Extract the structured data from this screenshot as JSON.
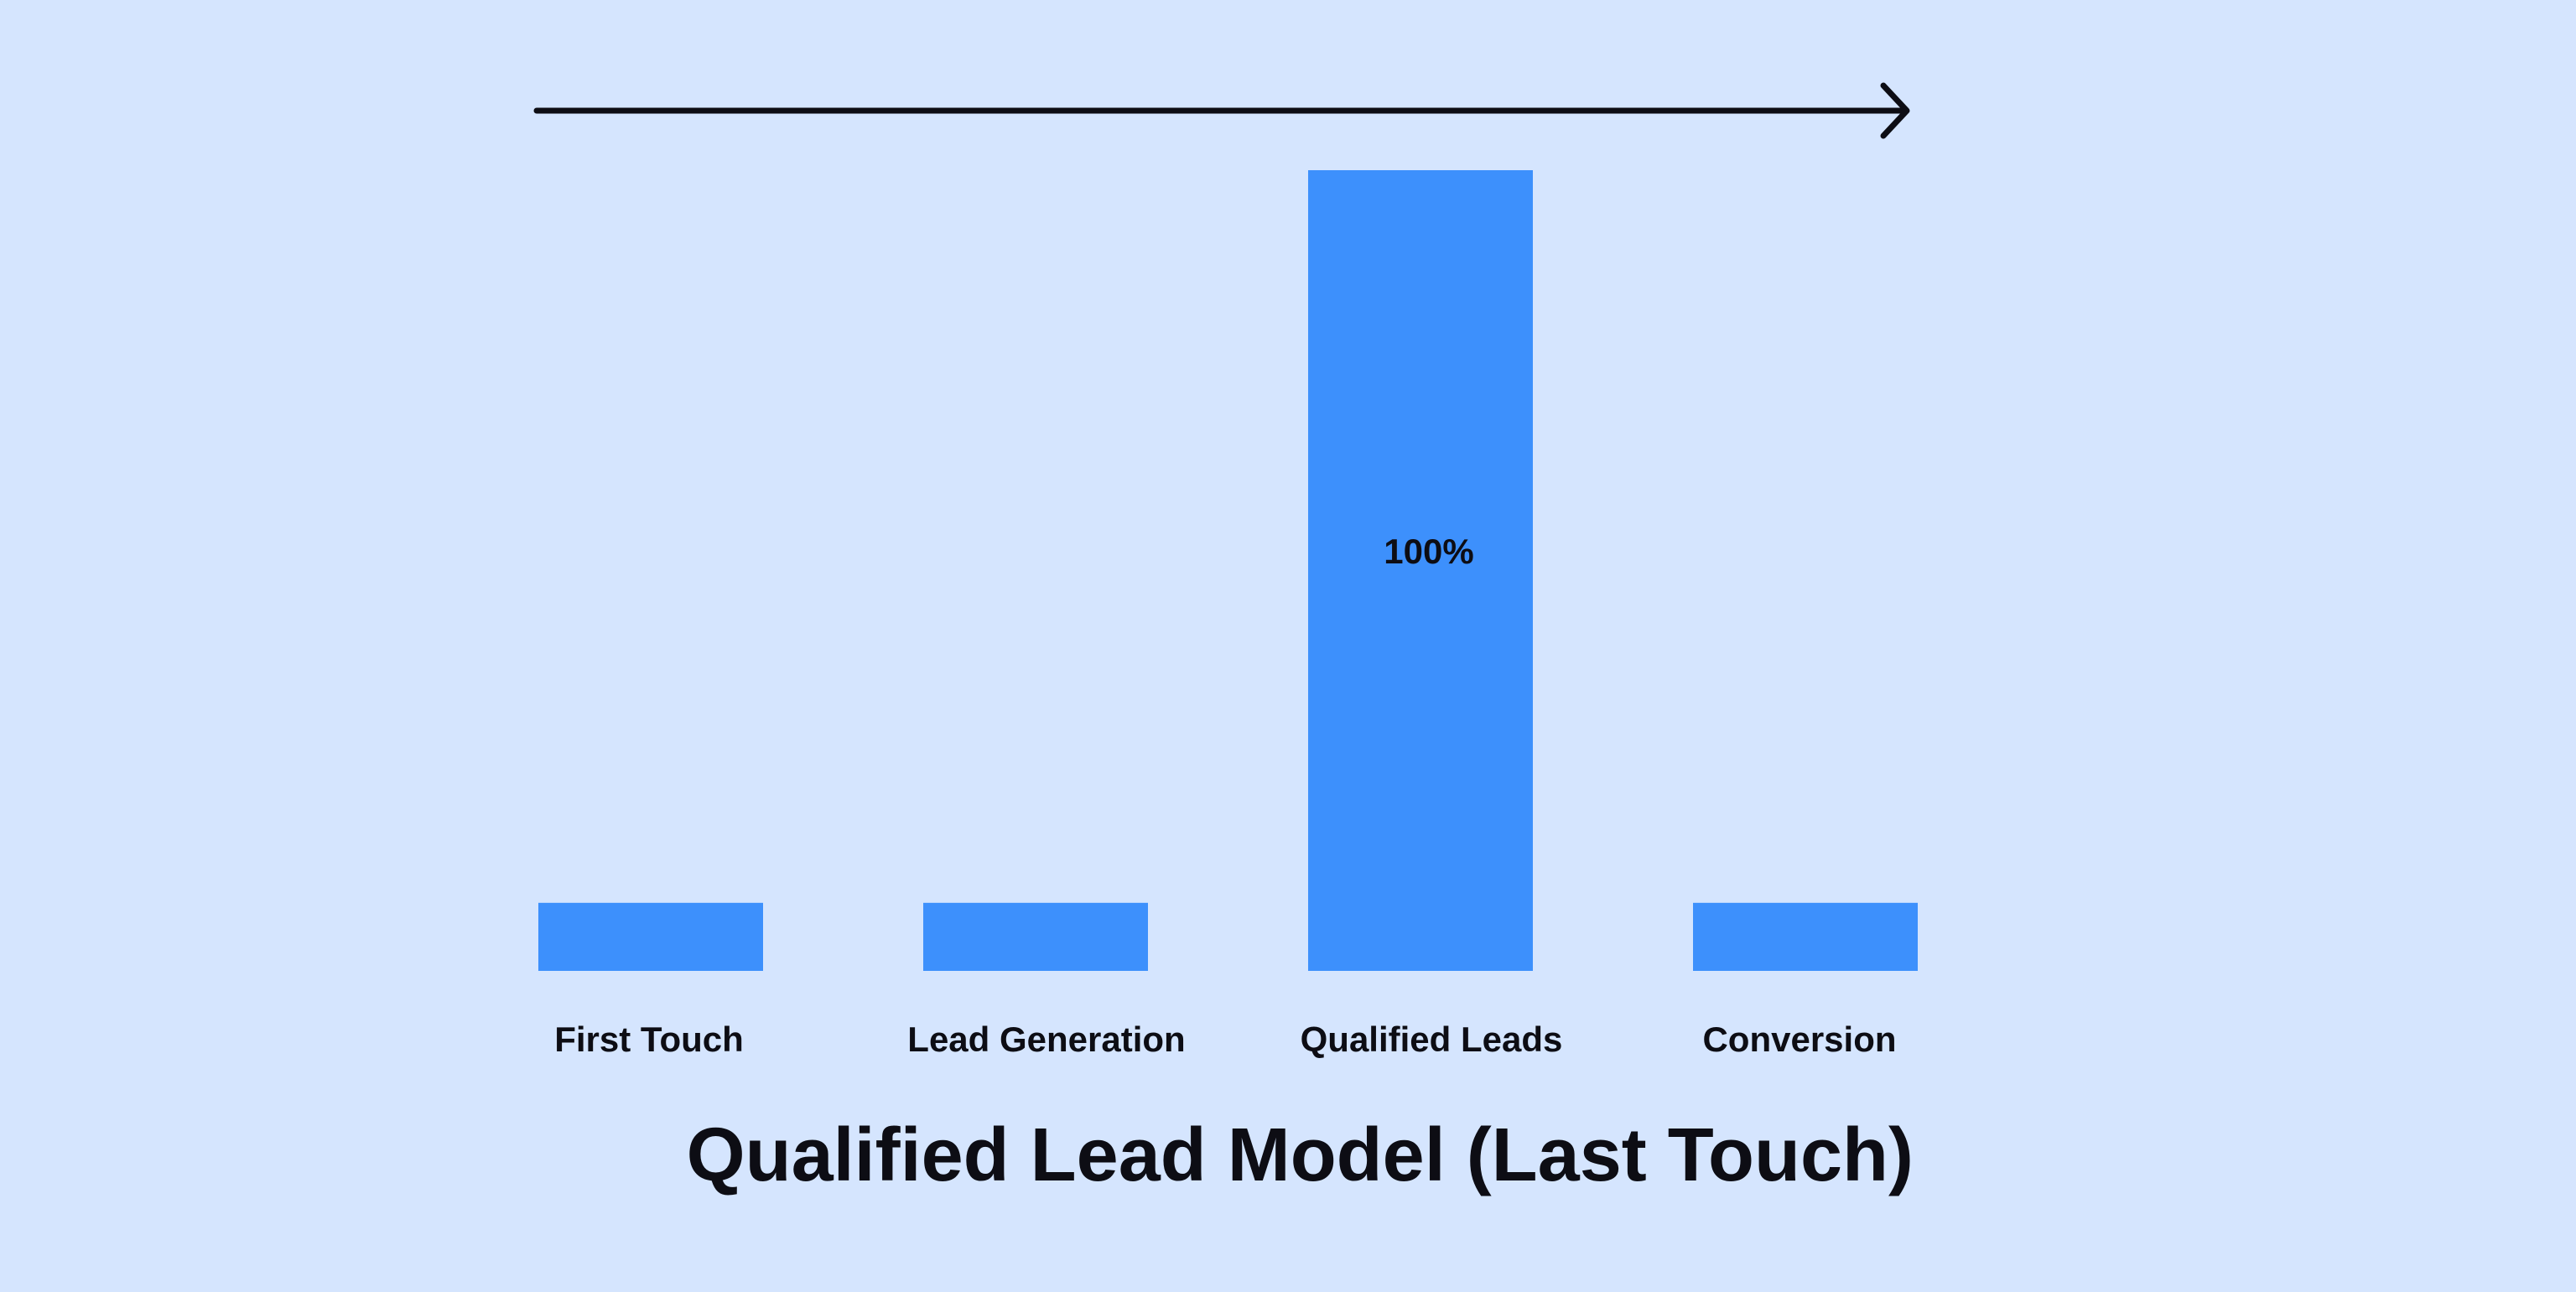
{
  "colors": {
    "background": "#d5e5fe",
    "bar": "#3d90fc",
    "text": "#0d0d14",
    "arrow": "#0d0d14"
  },
  "decoration": {
    "arrow": "right-arrow-icon"
  },
  "chart_data": {
    "type": "bar",
    "title": "Qualified Lead Model (Last Touch)",
    "categories": [
      "First Touch",
      "Lead Generation",
      "Qualified Leads",
      "Conversion"
    ],
    "values": [
      8.5,
      8.5,
      100,
      8.5
    ],
    "value_labels": [
      "",
      "",
      "100%",
      ""
    ],
    "ylim": [
      0,
      100
    ],
    "grid": false,
    "legend": "none"
  }
}
